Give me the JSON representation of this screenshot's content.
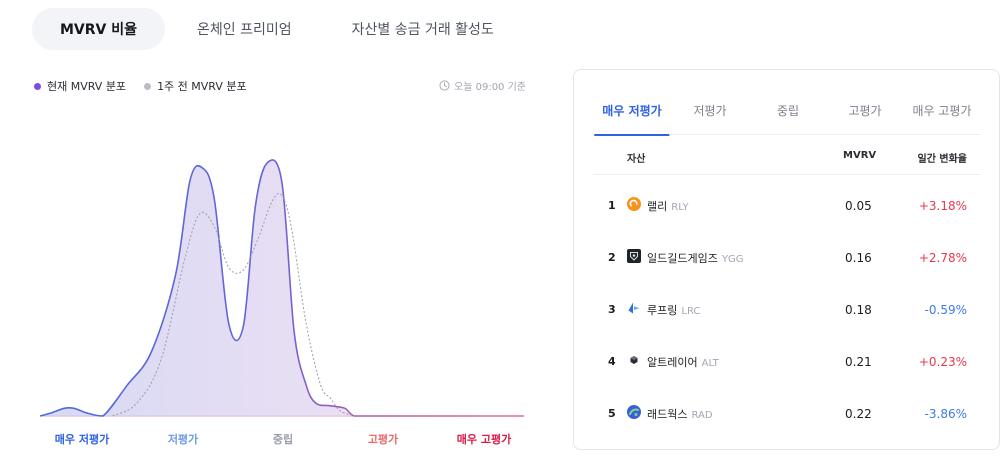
{
  "top_tabs": [
    {
      "label": "MVRV 비율",
      "active": true
    },
    {
      "label": "온체인 프리미엄",
      "active": false
    },
    {
      "label": "자산별 송금 거래 활성도",
      "active": false
    }
  ],
  "legend": {
    "current": {
      "label": "현재 MVRV 분포",
      "color": "#7c4dde"
    },
    "week_ago": {
      "label": "1주 전 MVRV 분포",
      "color": "#b9bcc4"
    }
  },
  "timestamp": {
    "text": "오늘 09:00 기준",
    "icon": "clock-icon"
  },
  "chart_data": {
    "type": "area",
    "x_labels": [
      "매우 저평가",
      "저평가",
      "중립",
      "고평가",
      "매우 고평가"
    ],
    "x_label_colors": [
      "#2f62e6",
      "#6b9ce8",
      "#9a9ea8",
      "#ea6a6a",
      "#d81b4a"
    ],
    "ylim": [
      0,
      1
    ],
    "series": [
      {
        "legend": "현재 MVRV 분포",
        "style": "filled",
        "x": [
          0,
          0.02,
          0.05,
          0.07,
          0.1,
          0.13,
          0.18,
          0.23,
          0.28,
          0.31,
          0.335,
          0.36,
          0.39,
          0.42,
          0.445,
          0.47,
          0.5,
          0.525,
          0.55,
          0.57,
          0.6,
          0.63,
          0.65,
          0.7,
          1
        ],
        "y": [
          0.0,
          0.01,
          0.03,
          0.03,
          0.01,
          0.0,
          0.12,
          0.25,
          0.55,
          0.92,
          0.97,
          0.85,
          0.36,
          0.35,
          0.82,
          0.99,
          0.91,
          0.33,
          0.12,
          0.05,
          0.04,
          0.03,
          0.0,
          0.0,
          0.0
        ]
      },
      {
        "legend": "1주 전 MVRV 분포",
        "style": "dotted",
        "x": [
          0.15,
          0.2,
          0.25,
          0.3,
          0.33,
          0.36,
          0.39,
          0.42,
          0.45,
          0.48,
          0.5,
          0.52,
          0.55,
          0.58,
          0.6,
          0.62,
          0.65
        ],
        "y": [
          0.0,
          0.05,
          0.22,
          0.62,
          0.79,
          0.74,
          0.58,
          0.57,
          0.69,
          0.84,
          0.86,
          0.73,
          0.36,
          0.12,
          0.07,
          0.02,
          0.0
        ]
      }
    ]
  },
  "panel": {
    "tabs": [
      {
        "label": "매우 저평가",
        "active": true
      },
      {
        "label": "저평가",
        "active": false
      },
      {
        "label": "중립",
        "active": false
      },
      {
        "label": "고평가",
        "active": false
      },
      {
        "label": "매우 고평가",
        "active": false
      }
    ],
    "columns": {
      "asset": "자산",
      "mvrv": "MVRV",
      "change": "일간 변화율"
    },
    "rows": [
      {
        "rank": "1",
        "name": "랠리",
        "symbol": "RLY",
        "mvrv": "0.05",
        "change": "+3.18%",
        "positive": true,
        "icon": "rly-coin-icon"
      },
      {
        "rank": "2",
        "name": "일드길드게임즈",
        "symbol": "YGG",
        "mvrv": "0.16",
        "change": "+2.78%",
        "positive": true,
        "icon": "ygg-coin-icon"
      },
      {
        "rank": "3",
        "name": "루프링",
        "symbol": "LRC",
        "mvrv": "0.18",
        "change": "-0.59%",
        "positive": false,
        "icon": "lrc-coin-icon"
      },
      {
        "rank": "4",
        "name": "알트레이어",
        "symbol": "ALT",
        "mvrv": "0.21",
        "change": "+0.23%",
        "positive": true,
        "icon": "alt-coin-icon"
      },
      {
        "rank": "5",
        "name": "래드웍스",
        "symbol": "RAD",
        "mvrv": "0.22",
        "change": "-3.86%",
        "positive": false,
        "icon": "rad-coin-icon"
      }
    ]
  },
  "colors": {
    "positive": "#e8384f",
    "negative": "#3d7be8",
    "accent": "#2f62e6"
  }
}
